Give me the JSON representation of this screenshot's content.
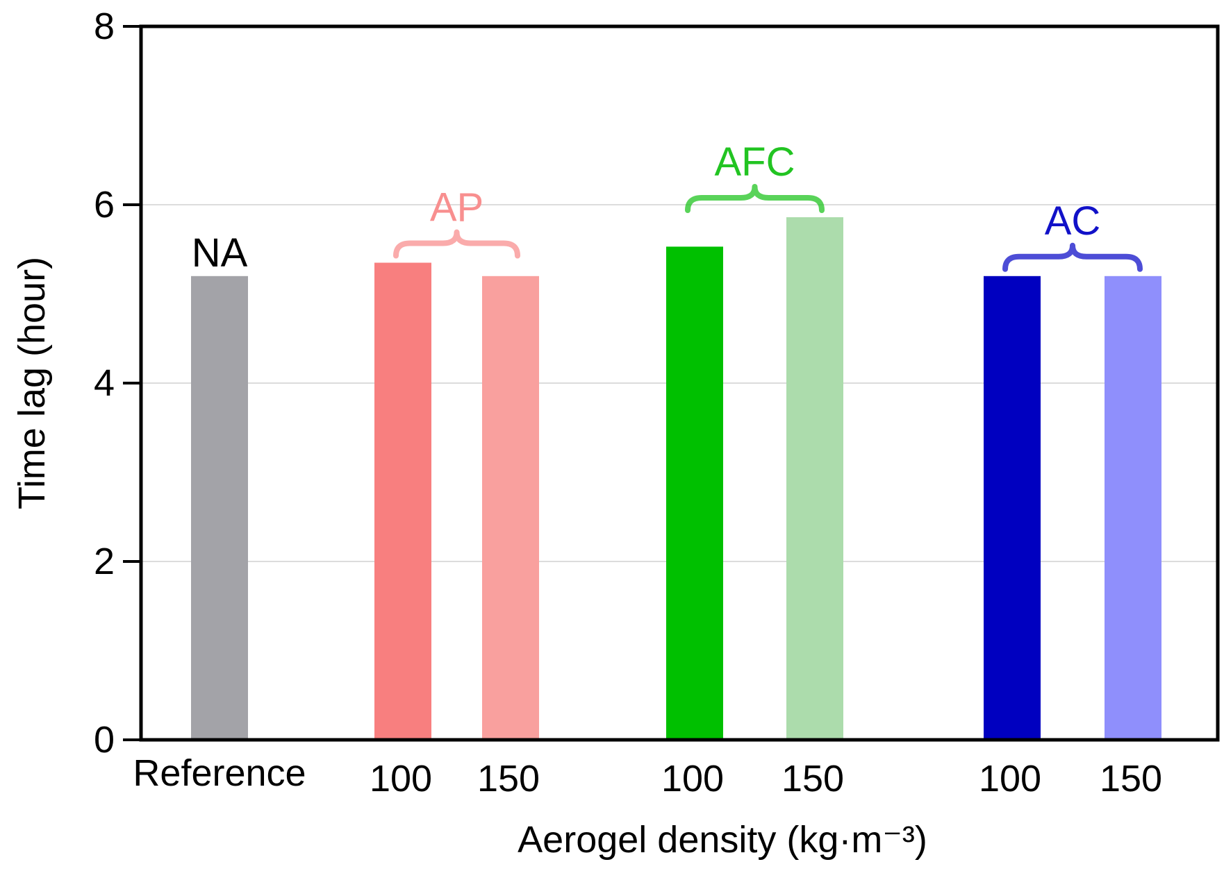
{
  "chart_data": {
    "type": "bar",
    "title": "",
    "xlabel": "Aerogel density (kg·m⁻³)",
    "ylabel": "Time lag (hour)",
    "ylim": [
      0,
      8
    ],
    "yticks": [
      "0",
      "2",
      "4",
      "6",
      "8"
    ],
    "grid": true,
    "bars": [
      {
        "label": "Reference",
        "value": 5.2,
        "color": "#a3a3a8",
        "group": "NA"
      },
      {
        "label": "100",
        "value": 5.35,
        "color": "#f87f7f",
        "group": "AP"
      },
      {
        "label": "150",
        "value": 5.2,
        "color": "#f9a09e",
        "group": "AP"
      },
      {
        "label": "100",
        "value": 5.53,
        "color": "#00c000",
        "group": "AFC"
      },
      {
        "label": "150",
        "value": 5.86,
        "color": "#acdcac",
        "group": "AFC"
      },
      {
        "label": "100",
        "value": 5.2,
        "color": "#0000c0",
        "group": "AC"
      },
      {
        "label": "150",
        "value": 5.2,
        "color": "#8f8ffc",
        "group": "AC"
      }
    ],
    "groups": [
      {
        "name": "NA",
        "color": "#000000",
        "bracket": false
      },
      {
        "name": "AP",
        "color": "#f88f8f",
        "bracket": true
      },
      {
        "name": "AFC",
        "color": "#22c422",
        "bracket": true
      },
      {
        "name": "AC",
        "color": "#1111c8",
        "bracket": true
      }
    ]
  }
}
